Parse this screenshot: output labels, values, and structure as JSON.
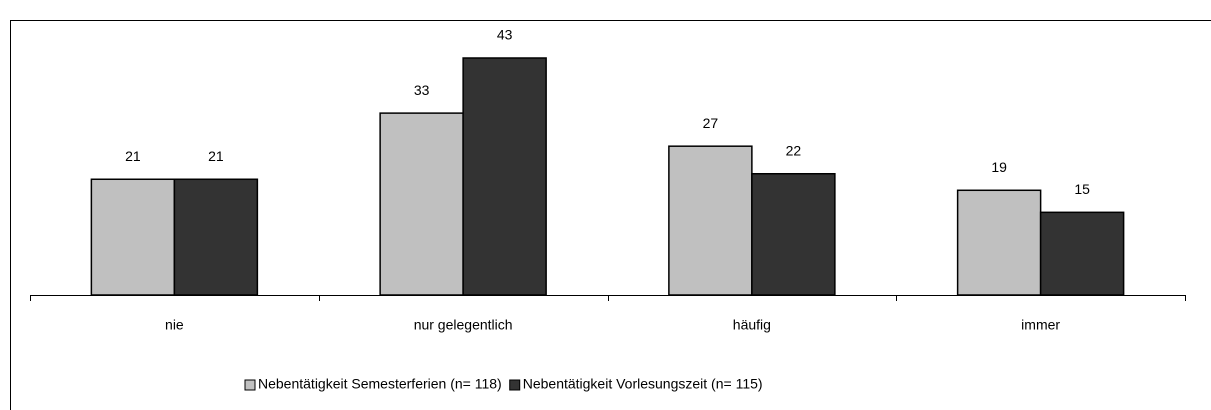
{
  "chart_data": {
    "type": "bar",
    "categories": [
      "nie",
      "nur gelegentlich",
      "häufig",
      "immer"
    ],
    "series": [
      {
        "name": "Nebentätigkeit Semesterferien (n= 118)",
        "color": "#c0c0c0",
        "values": [
          21,
          33,
          27,
          19
        ]
      },
      {
        "name": "Nebentätigkeit Vorlesungszeit (n= 115)",
        "color": "#333333",
        "values": [
          21,
          43,
          22,
          15
        ]
      }
    ],
    "legend": "bottom"
  }
}
